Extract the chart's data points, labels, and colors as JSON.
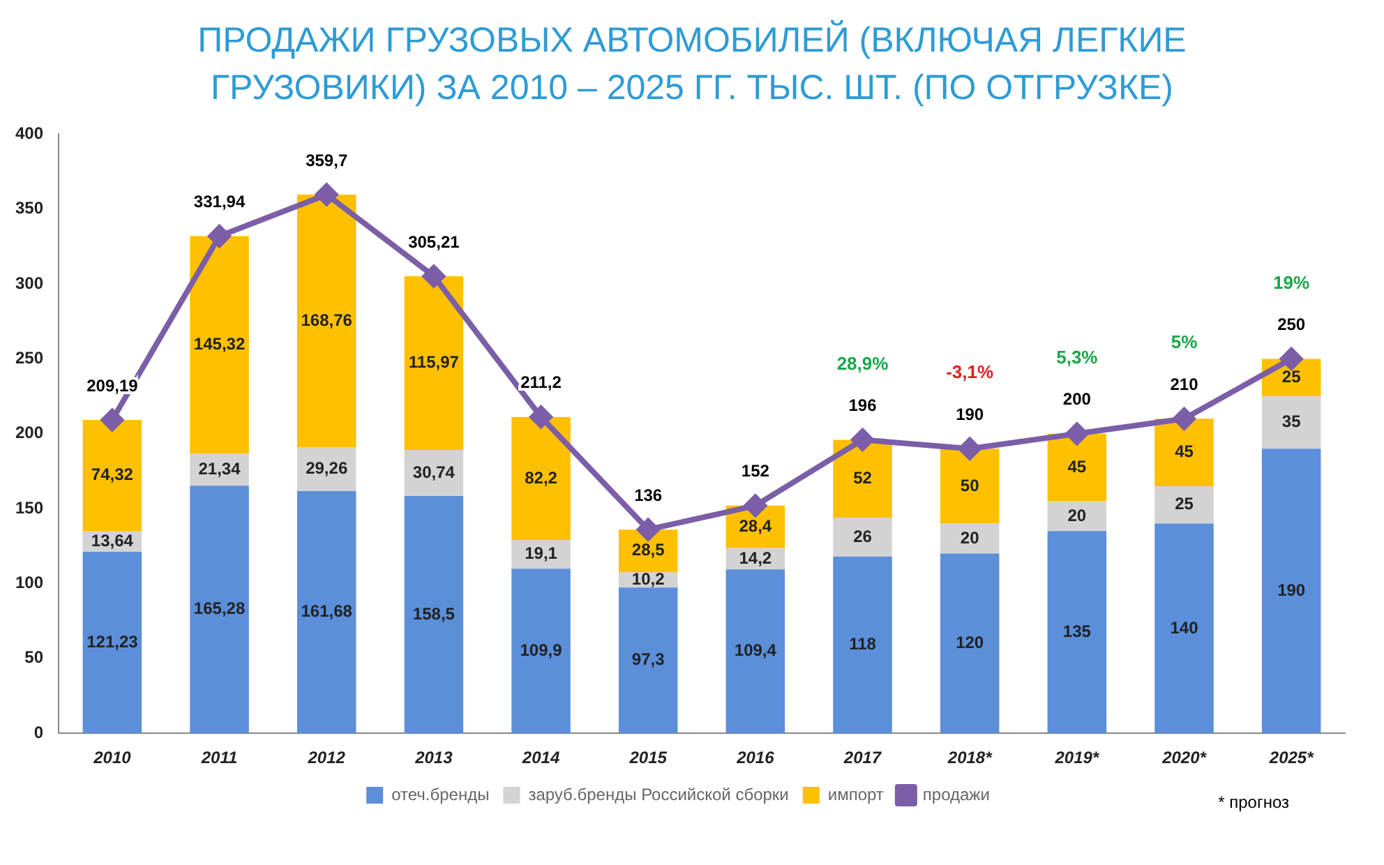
{
  "chart_data": {
    "type": "bar",
    "title": "ПРОДАЖИ ГРУЗОВЫХ АВТОМОБИЛЕЙ (ВКЛЮЧАЯ ЛЕГКИЕ ГРУЗОВИКИ) ЗА 2010 – 2025 ГГ. ТЫС. ШТ. (ПО ОТГРУЗКЕ)",
    "categories": [
      "2010",
      "2011",
      "2012",
      "2013",
      "2014",
      "2015",
      "2016",
      "2017",
      "2018*",
      "2019*",
      "2020*",
      "2025*"
    ],
    "stacked": true,
    "series": [
      {
        "name": "отеч.бренды",
        "color": "#5b8fd9",
        "values": [
          121.23,
          165.28,
          161.68,
          158.5,
          109.9,
          97.3,
          109.4,
          118,
          120,
          135,
          140,
          190
        ],
        "value_labels": [
          "121,23",
          "165,28",
          "161,68",
          "158,5",
          "109,9",
          "97,3",
          "109,4",
          "118",
          "120",
          "135",
          "140",
          "190"
        ]
      },
      {
        "name": "заруб.бренды Российской сборки",
        "color": "#d3d3d3",
        "values": [
          13.64,
          21.34,
          29.26,
          30.74,
          19.1,
          10.2,
          14.2,
          26,
          20,
          20,
          25,
          35
        ],
        "value_labels": [
          "13,64",
          "21,34",
          "29,26",
          "30,74",
          "19,1",
          "10,2",
          "14,2",
          "26",
          "20",
          "20",
          "25",
          "35"
        ]
      },
      {
        "name": "импорт",
        "color": "#ffc000",
        "values": [
          74.32,
          145.32,
          168.76,
          115.97,
          82.2,
          28.5,
          28.4,
          52,
          50,
          45,
          45,
          25
        ],
        "value_labels": [
          "74,32",
          "145,32",
          "168,76",
          "115,97",
          "82,2",
          "28,5",
          "28,4",
          "52",
          "50",
          "45",
          "45",
          "25"
        ]
      },
      {
        "name": "продажи",
        "type": "line",
        "color": "#7b5ea7",
        "marker": "diamond",
        "values": [
          209.19,
          331.94,
          359.7,
          305.21,
          211.2,
          136,
          152,
          196,
          190,
          200,
          210,
          250
        ],
        "value_labels": [
          "209,19",
          "331,94",
          "359,7",
          "305,21",
          "211,2",
          "136",
          "152",
          "196",
          "190",
          "200",
          "210",
          "250"
        ]
      }
    ],
    "ylim": [
      0,
      400
    ],
    "yticks": [
      0,
      50,
      100,
      150,
      200,
      250,
      300,
      350,
      400
    ],
    "grid": false,
    "legend": "bottom",
    "annotations": [
      "* прогноз",
      "28,9%",
      "-3,1%",
      "5,3%",
      "5%",
      "19%"
    ]
  }
}
